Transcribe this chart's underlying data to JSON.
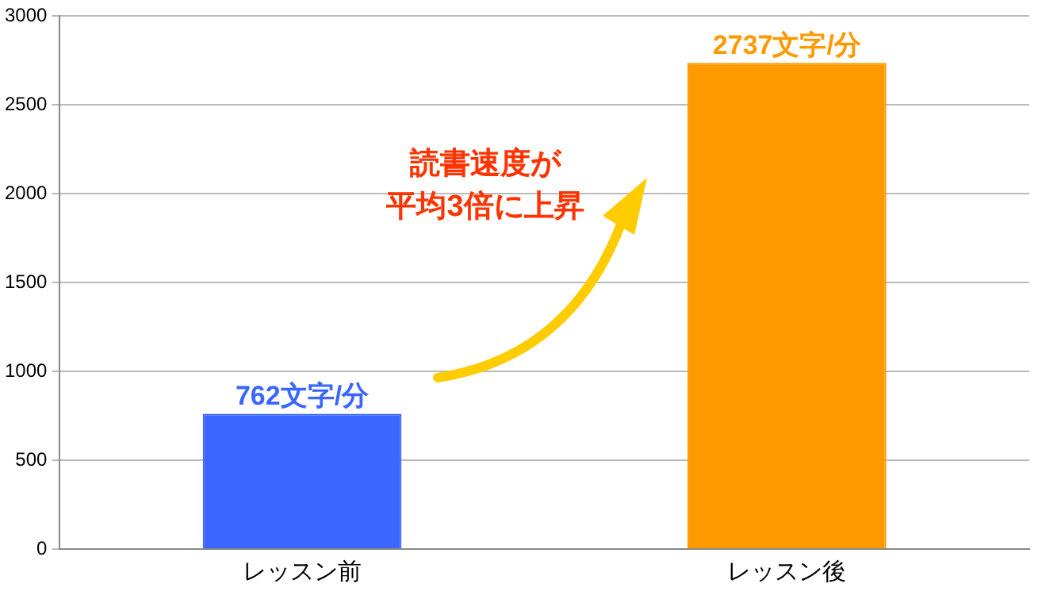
{
  "chart_data": {
    "type": "bar",
    "categories": [
      "レッスン前",
      "レッスン後"
    ],
    "values": [
      762,
      2737
    ],
    "colors": [
      "#3b66ff",
      "#ff9900"
    ],
    "value_labels": [
      "762文字/分",
      "2737文字/分"
    ],
    "ylim": [
      0,
      3000
    ],
    "yticks": [
      0,
      500,
      1000,
      1500,
      2000,
      2500,
      3000
    ],
    "grid": "y",
    "legend": false,
    "annotations": [
      "読書速度が",
      "平均3倍に上昇"
    ]
  }
}
